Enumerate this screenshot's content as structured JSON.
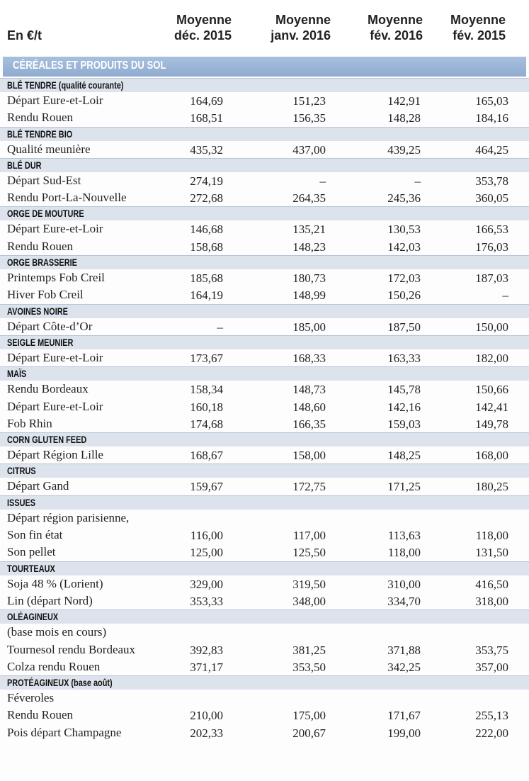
{
  "header": {
    "unit": "En €/t",
    "columns": [
      {
        "line1": "Moyenne",
        "line2": "déc. 2015"
      },
      {
        "line1": "Moyenne",
        "line2": "janv. 2016"
      },
      {
        "line1": "Moyenne",
        "line2": "fév. 2016"
      },
      {
        "line1": "Moyenne",
        "line2": "fév. 2015"
      }
    ]
  },
  "band": "CÉRÉALES ET PRODUITS DU SOL",
  "rows": [
    {
      "type": "section",
      "label": "BLÉ TENDRE (qualité courante)"
    },
    {
      "type": "data",
      "label": "Départ Eure-et-Loir",
      "values": [
        "164,69",
        "151,23",
        "142,91",
        "165,03"
      ]
    },
    {
      "type": "data",
      "label": "Rendu Rouen",
      "values": [
        "168,51",
        "156,35",
        "148,28",
        "184,16"
      ]
    },
    {
      "type": "section",
      "label": "BLÉ TENDRE BIO"
    },
    {
      "type": "data",
      "label": "Qualité meunière",
      "values": [
        "435,32",
        "437,00",
        "439,25",
        "464,25"
      ]
    },
    {
      "type": "section",
      "label": "BLÉ DUR"
    },
    {
      "type": "data",
      "label": "Départ Sud-Est",
      "values": [
        "274,19",
        "–",
        "–",
        "353,78"
      ]
    },
    {
      "type": "data",
      "label": "Rendu Port-La-Nouvelle",
      "values": [
        "272,68",
        "264,35",
        "245,36",
        "360,05"
      ]
    },
    {
      "type": "section",
      "label": "ORGE DE MOUTURE"
    },
    {
      "type": "data",
      "label": "Départ Eure-et-Loir",
      "values": [
        "146,68",
        "135,21",
        "130,53",
        "166,53"
      ]
    },
    {
      "type": "data",
      "label": "Rendu Rouen",
      "values": [
        "158,68",
        "148,23",
        "142,03",
        "176,03"
      ]
    },
    {
      "type": "section",
      "label": "ORGE BRASSERIE"
    },
    {
      "type": "data",
      "label": "Printemps Fob Creil",
      "values": [
        "185,68",
        "180,73",
        "172,03",
        "187,03"
      ]
    },
    {
      "type": "data",
      "label": "Hiver Fob Creil",
      "values": [
        "164,19",
        "148,99",
        "150,26",
        "–"
      ]
    },
    {
      "type": "section",
      "label": "AVOINES NOIRE"
    },
    {
      "type": "data",
      "label": "Départ Côte-d’Or",
      "values": [
        "–",
        "185,00",
        "187,50",
        "150,00"
      ]
    },
    {
      "type": "section",
      "label": "SEIGLE MEUNIER"
    },
    {
      "type": "data",
      "label": "Départ Eure-et-Loir",
      "values": [
        "173,67",
        "168,33",
        "163,33",
        "182,00"
      ]
    },
    {
      "type": "section",
      "label": "MAÏS"
    },
    {
      "type": "data",
      "label": "Rendu Bordeaux",
      "values": [
        "158,34",
        "148,73",
        "145,78",
        "150,66"
      ]
    },
    {
      "type": "data",
      "label": "Départ Eure-et-Loir",
      "values": [
        "160,18",
        "148,60",
        "142,16",
        "142,41"
      ]
    },
    {
      "type": "data",
      "label": "Fob Rhin",
      "values": [
        "174,68",
        "166,35",
        "159,03",
        "149,78"
      ]
    },
    {
      "type": "section",
      "label": "CORN GLUTEN FEED"
    },
    {
      "type": "data",
      "label": "Départ Région Lille",
      "values": [
        "168,67",
        "158,00",
        "148,25",
        "168,00"
      ]
    },
    {
      "type": "section",
      "label": "CITRUS"
    },
    {
      "type": "data",
      "label": "Départ Gand",
      "values": [
        "159,67",
        "172,75",
        "171,25",
        "180,25"
      ]
    },
    {
      "type": "section",
      "label": "ISSUES"
    },
    {
      "type": "data",
      "label": "Départ région parisienne,",
      "values": [
        "",
        "",
        "",
        ""
      ]
    },
    {
      "type": "data",
      "label": "Son fin état",
      "values": [
        "116,00",
        "117,00",
        "113,63",
        "118,00"
      ]
    },
    {
      "type": "data",
      "label": "Son pellet",
      "values": [
        "125,00",
        "125,50",
        "118,00",
        "131,50"
      ]
    },
    {
      "type": "section",
      "label": "TOURTEAUX"
    },
    {
      "type": "data",
      "label": "Soja 48 % (Lorient)",
      "values": [
        "329,00",
        "319,50",
        "310,00",
        "416,50"
      ]
    },
    {
      "type": "data",
      "label": "Lin (départ Nord)",
      "values": [
        "353,33",
        "348,00",
        "334,70",
        "318,00"
      ]
    },
    {
      "type": "section",
      "label": "OLÉAGINEUX"
    },
    {
      "type": "data",
      "label": "(base mois en cours)",
      "values": [
        "",
        "",
        "",
        ""
      ]
    },
    {
      "type": "data",
      "label": "Tournesol rendu Bordeaux",
      "values": [
        "392,83",
        "381,25",
        "371,88",
        "353,75"
      ]
    },
    {
      "type": "data",
      "label": "Colza rendu Rouen",
      "values": [
        "371,17",
        "353,50",
        "342,25",
        "357,00"
      ]
    },
    {
      "type": "section",
      "label": "PROTÉAGINEUX (base août)"
    },
    {
      "type": "data",
      "label": "Féveroles",
      "values": [
        "",
        "",
        "",
        ""
      ]
    },
    {
      "type": "data",
      "label": "Rendu Rouen",
      "values": [
        "210,00",
        "175,00",
        "171,67",
        "255,13"
      ]
    },
    {
      "type": "data",
      "label": "Pois départ Champagne",
      "values": [
        "202,33",
        "200,67",
        "199,00",
        "222,00"
      ]
    }
  ]
}
